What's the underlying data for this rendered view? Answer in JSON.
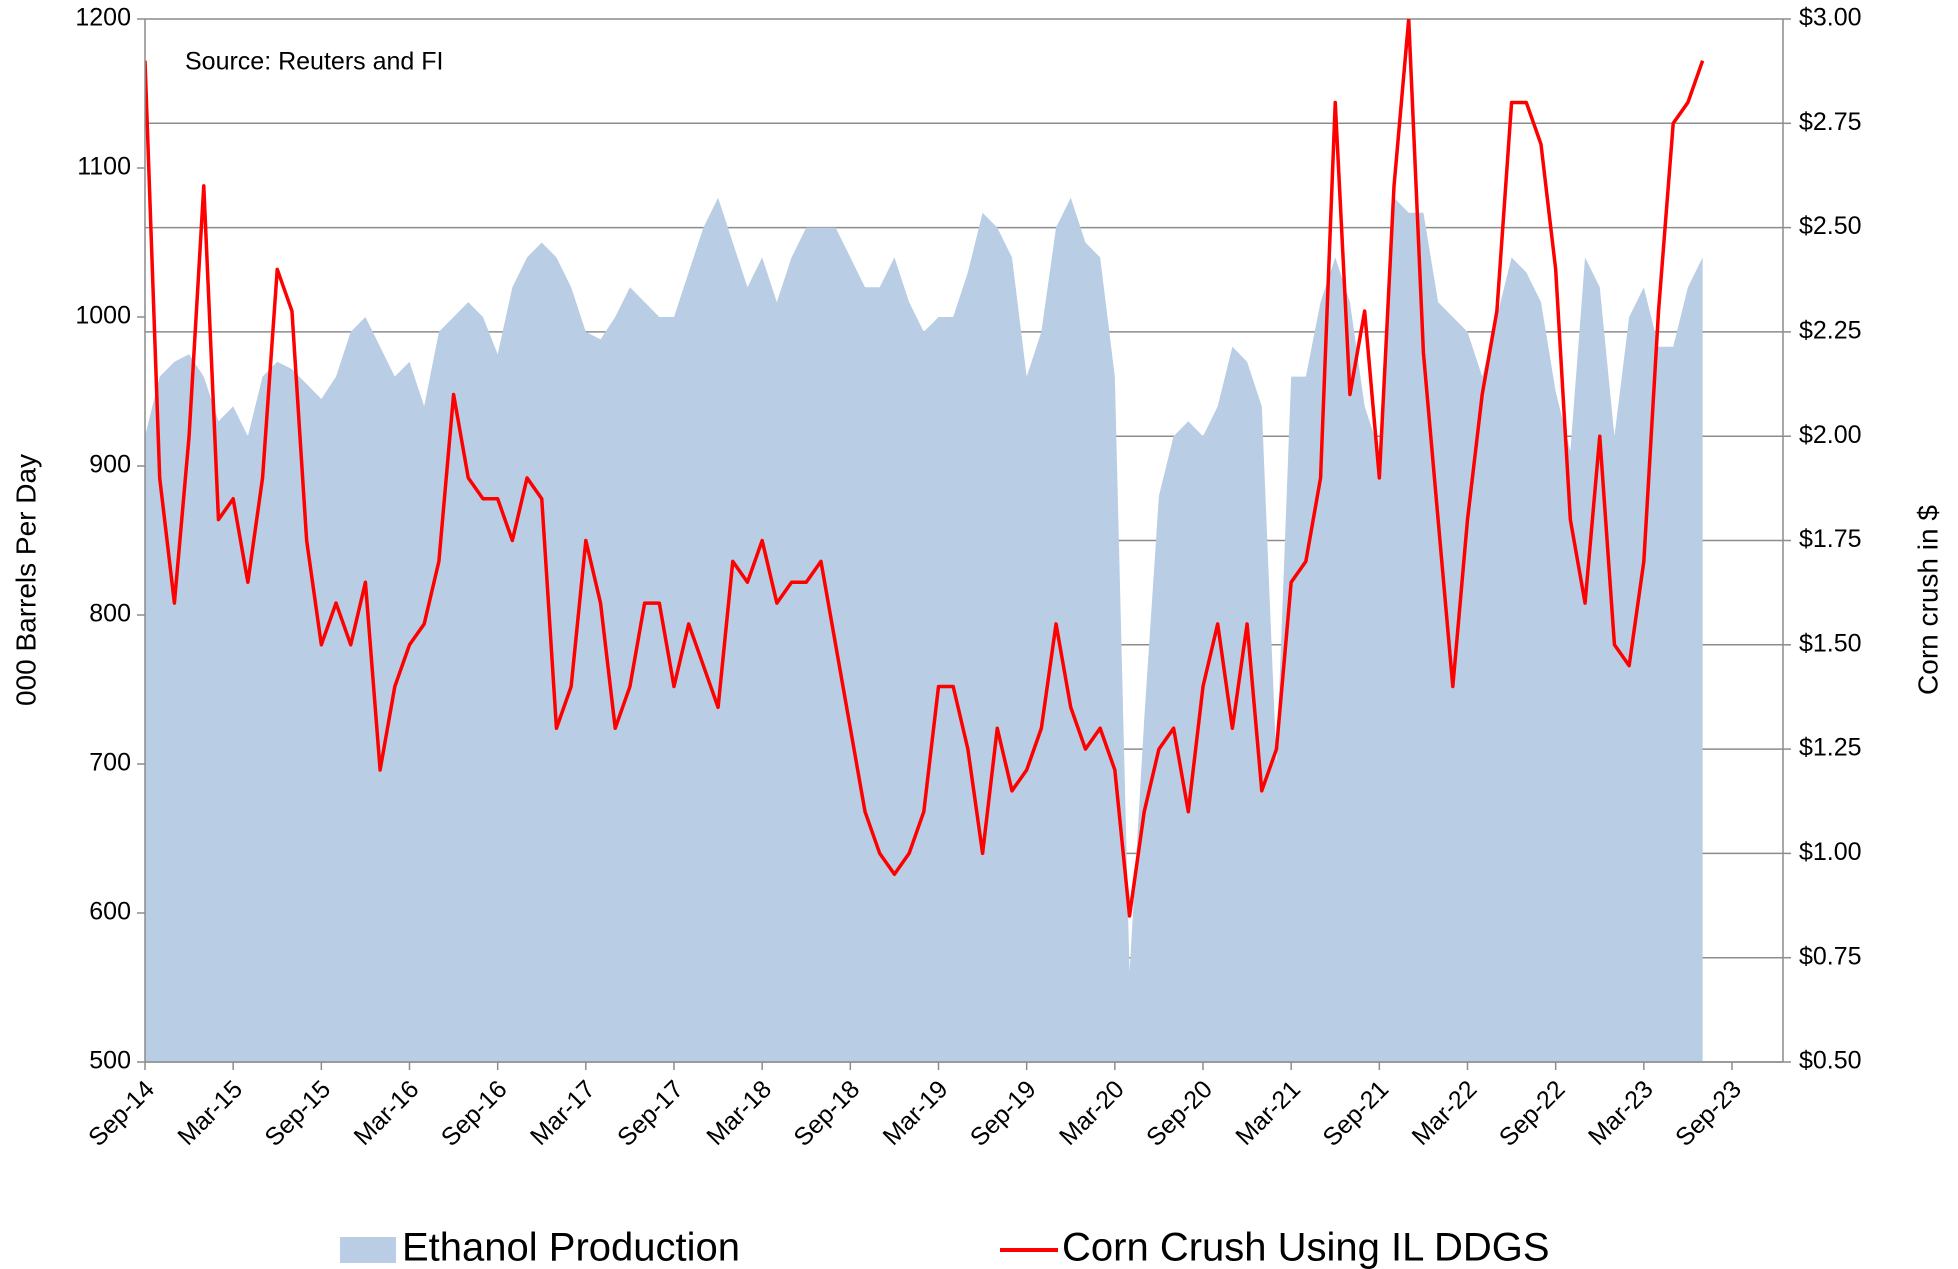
{
  "chart_data": {
    "type": "combo",
    "annotation": "Source: Reuters and FI",
    "ylabel": "000 Barrels Per Day",
    "y2label": "Corn crush in $",
    "categories": [
      "Sep-14",
      null,
      null,
      null,
      null,
      null,
      "Mar-15",
      null,
      null,
      null,
      null,
      null,
      "Sep-15",
      null,
      null,
      null,
      null,
      null,
      "Mar-16",
      null,
      null,
      null,
      null,
      null,
      "Sep-16",
      null,
      null,
      null,
      null,
      null,
      "Mar-17",
      null,
      null,
      null,
      null,
      null,
      "Sep-17",
      null,
      null,
      null,
      null,
      null,
      "Mar-18",
      null,
      null,
      null,
      null,
      null,
      "Sep-18",
      null,
      null,
      null,
      null,
      null,
      "Mar-19",
      null,
      null,
      null,
      null,
      null,
      "Sep-19",
      null,
      null,
      null,
      null,
      null,
      "Mar-20",
      null,
      null,
      null,
      null,
      null,
      "Sep-20",
      null,
      null,
      null,
      null,
      null,
      "Mar-21",
      null,
      null,
      null,
      null,
      null,
      "Sep-21",
      null,
      null,
      null,
      null,
      null,
      "Mar-22",
      null,
      null,
      null,
      null,
      null,
      "Sep-22",
      null,
      null,
      null,
      null,
      null,
      "Mar-23",
      null,
      null,
      null,
      null,
      null,
      "Sep-23"
    ],
    "series": [
      {
        "name": "Ethanol Production",
        "type": "area",
        "axis": "y",
        "color": "#b9cde5",
        "values": [
          920,
          960,
          970,
          975,
          960,
          930,
          940,
          920,
          960,
          970,
          965,
          955,
          945,
          960,
          990,
          1000,
          980,
          960,
          970,
          940,
          990,
          1000,
          1010,
          1000,
          975,
          1020,
          1040,
          1050,
          1040,
          1020,
          990,
          985,
          1000,
          1020,
          1010,
          1000,
          1000,
          1030,
          1060,
          1080,
          1050,
          1020,
          1040,
          1010,
          1040,
          1060,
          1060,
          1060,
          1040,
          1020,
          1020,
          1040,
          1010,
          990,
          1000,
          1000,
          1030,
          1070,
          1060,
          1040,
          960,
          990,
          1060,
          1080,
          1050,
          1040,
          960,
          560,
          730,
          880,
          920,
          930,
          920,
          940,
          980,
          970,
          940,
          700,
          960,
          960,
          1010,
          1040,
          1010,
          940,
          910,
          1080,
          1070,
          1070,
          1010,
          1000,
          990,
          960,
          1000,
          1040,
          1030,
          1010,
          950,
          910,
          1040,
          1020,
          920,
          1000,
          1020,
          980,
          980,
          1020,
          1040,
          null,
          null
        ]
      },
      {
        "name": "Corn Crush Using IL DDGS",
        "type": "line",
        "axis": "y2",
        "color": "#ff0000",
        "values": [
          2.9,
          1.9,
          1.6,
          2.0,
          2.6,
          1.8,
          1.85,
          1.65,
          1.9,
          2.4,
          2.3,
          1.75,
          1.5,
          1.6,
          1.5,
          1.65,
          1.2,
          1.4,
          1.5,
          1.55,
          1.7,
          2.1,
          1.9,
          1.85,
          1.85,
          1.75,
          1.9,
          1.85,
          1.3,
          1.4,
          1.75,
          1.6,
          1.3,
          1.4,
          1.6,
          1.6,
          1.4,
          1.55,
          1.45,
          1.35,
          1.7,
          1.65,
          1.75,
          1.6,
          1.65,
          1.65,
          1.7,
          1.5,
          1.3,
          1.1,
          1.0,
          0.95,
          1.0,
          1.1,
          1.4,
          1.4,
          1.25,
          1.0,
          1.3,
          1.15,
          1.2,
          1.3,
          1.55,
          1.35,
          1.25,
          1.3,
          1.2,
          0.85,
          1.1,
          1.25,
          1.3,
          1.1,
          1.4,
          1.55,
          1.3,
          1.55,
          1.15,
          1.25,
          1.65,
          1.7,
          1.9,
          2.8,
          2.1,
          2.3,
          1.9,
          2.6,
          3.0,
          2.2,
          1.8,
          1.4,
          1.8,
          2.1,
          2.3,
          2.8,
          2.8,
          2.7,
          2.4,
          1.8,
          1.6,
          2.0,
          1.5,
          1.45,
          1.7,
          2.3,
          2.75,
          2.8,
          2.9,
          null,
          null
        ]
      }
    ],
    "ylim": [
      500,
      1200
    ],
    "yticks": [
      500,
      600,
      700,
      800,
      900,
      1000,
      1100,
      1200
    ],
    "y2lim": [
      0.5,
      3.0
    ],
    "y2ticks": [
      {
        "value": 0.5,
        "label": "$0.50"
      },
      {
        "value": 0.75,
        "label": "$0.75"
      },
      {
        "value": 1.0,
        "label": "$1.00"
      },
      {
        "value": 1.25,
        "label": "$1.25"
      },
      {
        "value": 1.5,
        "label": "$1.50"
      },
      {
        "value": 1.75,
        "label": "$1.75"
      },
      {
        "value": 2.0,
        "label": "$2.00"
      },
      {
        "value": 2.25,
        "label": "$2.25"
      },
      {
        "value": 2.5,
        "label": "$2.50"
      },
      {
        "value": 2.75,
        "label": "$2.75"
      },
      {
        "value": 3.0,
        "label": "$3.00"
      }
    ],
    "grid": "y2",
    "legend": "bottom"
  }
}
